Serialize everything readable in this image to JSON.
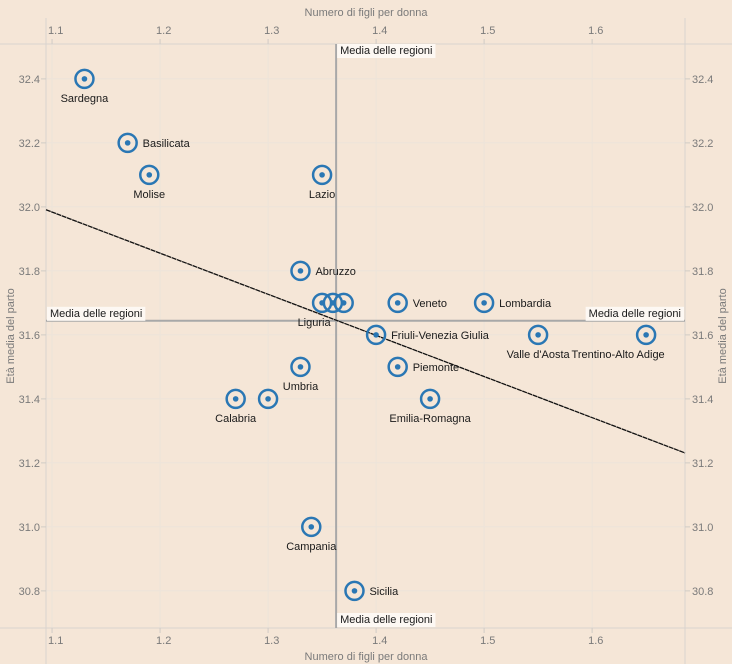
{
  "chart_data": {
    "type": "scatter",
    "title": "",
    "xlabel": "Numero di figli per donna",
    "ylabel": "Età media del parto",
    "xlim": [
      1.0944,
      1.686
    ],
    "ylim": [
      30.684,
      32.509
    ],
    "x_ticks": [
      "1.1",
      "1.2",
      "1.3",
      "1.4",
      "1.5",
      "1.6"
    ],
    "x_tick_values": [
      1.1,
      1.2,
      1.3,
      1.4,
      1.5,
      1.6
    ],
    "y_ticks": [
      "30.8",
      "31.0",
      "31.2",
      "31.4",
      "31.6",
      "31.8",
      "32.0",
      "32.2",
      "32.4"
    ],
    "y_tick_values": [
      30.8,
      31.0,
      31.2,
      31.4,
      31.6,
      31.8,
      32.0,
      32.2,
      32.4
    ],
    "grid": true,
    "point_color": "#2a77b4",
    "trend_line": {
      "x": [
        1.0944,
        1.686
      ],
      "y": [
        31.991,
        31.231
      ],
      "color": "#111111"
    },
    "reference_lines": {
      "label": "Media delle regioni",
      "x_mean": 1.363,
      "y_mean": 31.644,
      "color": "#a8a8a8"
    },
    "points": [
      {
        "name": "Sardegna",
        "x": 1.13,
        "y": 32.4,
        "label": "Sardegna",
        "label_pos": "below"
      },
      {
        "name": "Basilicata",
        "x": 1.17,
        "y": 32.2,
        "label": "Basilicata",
        "label_pos": "right"
      },
      {
        "name": "Molise",
        "x": 1.19,
        "y": 32.1,
        "label": "Molise",
        "label_pos": "below"
      },
      {
        "name": "Lazio",
        "x": 1.35,
        "y": 32.1,
        "label": "Lazio",
        "label_pos": "below"
      },
      {
        "name": "Abruzzo",
        "x": 1.33,
        "y": 31.8,
        "label": "Abruzzo",
        "label_pos": "right"
      },
      {
        "name": "Liguria",
        "x": 1.35,
        "y": 31.7,
        "label": "Liguria",
        "label_pos": "below"
      },
      {
        "name": "region-unlabeled-1",
        "x": 1.36,
        "y": 31.7,
        "label": "",
        "label_pos": "none"
      },
      {
        "name": "region-unlabeled-2",
        "x": 1.37,
        "y": 31.7,
        "label": "",
        "label_pos": "none"
      },
      {
        "name": "Veneto",
        "x": 1.42,
        "y": 31.7,
        "label": "Veneto",
        "label_pos": "right"
      },
      {
        "name": "Lombardia",
        "x": 1.5,
        "y": 31.7,
        "label": "Lombardia",
        "label_pos": "below"
      },
      {
        "name": "Friuli-Venezia Giulia",
        "x": 1.4,
        "y": 31.6,
        "label": "Friuli-Venezia Giulia",
        "label_pos": "right"
      },
      {
        "name": "Valle d'Aosta",
        "x": 1.55,
        "y": 31.6,
        "label": "Valle d'Aosta",
        "label_pos": "below"
      },
      {
        "name": "Trentino-Alto Adige",
        "x": 1.65,
        "y": 31.6,
        "label": "Trentino-Alto Adige",
        "label_pos": "above"
      },
      {
        "name": "Umbria",
        "x": 1.33,
        "y": 31.5,
        "label": "Umbria",
        "label_pos": "below"
      },
      {
        "name": "Piemonte",
        "x": 1.42,
        "y": 31.5,
        "label": "Piemonte",
        "label_pos": "right"
      },
      {
        "name": "Calabria",
        "x": 1.27,
        "y": 31.4,
        "label": "Calabria",
        "label_pos": "below"
      },
      {
        "name": "region-unlabeled-3",
        "x": 1.3,
        "y": 31.4,
        "label": "",
        "label_pos": "none"
      },
      {
        "name": "Emilia-Romagna",
        "x": 1.45,
        "y": 31.4,
        "label": "Emilia-Romagna",
        "label_pos": "below"
      },
      {
        "name": "Campania",
        "x": 1.34,
        "y": 31.0,
        "label": "Campania",
        "label_pos": "below"
      },
      {
        "name": "Sicilia",
        "x": 1.38,
        "y": 30.8,
        "label": "Sicilia",
        "label_pos": "right"
      }
    ]
  }
}
